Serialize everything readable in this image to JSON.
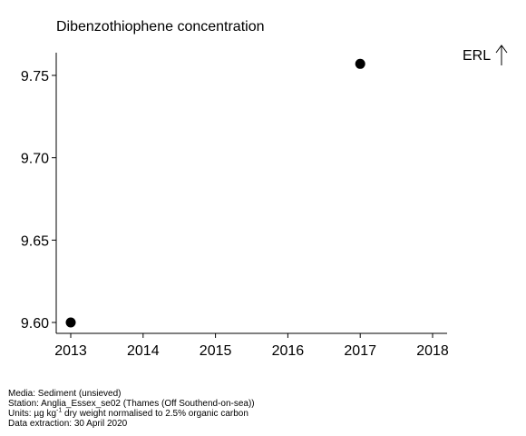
{
  "chart_data": {
    "type": "scatter",
    "title": "Dibenzothiophene concentration",
    "xlabel": "",
    "ylabel": "",
    "x_ticks": [
      "2013",
      "2014",
      "2015",
      "2016",
      "2017",
      "2018"
    ],
    "y_ticks": [
      "9.60",
      "9.65",
      "9.70",
      "9.75"
    ],
    "xlim": [
      2013,
      2018
    ],
    "ylim": [
      9.6,
      9.765
    ],
    "grid": false,
    "points": [
      {
        "x": 2013,
        "y": 9.6
      },
      {
        "x": 2017,
        "y": 9.757
      }
    ],
    "reference_label": "ERL",
    "reference_note": "ERL is above the plotted range (upward arrow)"
  },
  "footer": {
    "media": "Media: Sediment (unsieved)",
    "station": "Station: Anglia_Essex_se02 (Thames (Off Southend-on-sea))",
    "units_prefix": "Units:  µg kg",
    "units_sup": "-1",
    "units_suffix": " dry weight normalised to 2.5% organic carbon",
    "extraction": "Data extraction: 30 April 2020"
  }
}
